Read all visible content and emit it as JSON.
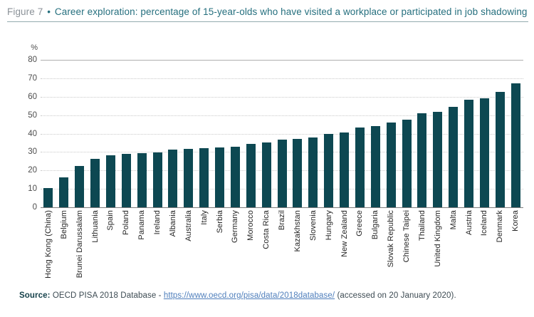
{
  "figure": {
    "label": "Figure 7",
    "separator": "•",
    "title": "Career exploration: percentage of 15-year-olds who have visited a workplace or participated in job shadowing"
  },
  "chart_data": {
    "type": "bar",
    "title": "Career exploration: percentage of 15-year-olds who have visited a workplace or participated in job shadowing",
    "unit_label": "%",
    "ylabel": "%",
    "ylim": [
      0,
      80
    ],
    "yticks": [
      0,
      10,
      20,
      30,
      40,
      50,
      60,
      70,
      80
    ],
    "grid": "horizontal-dotted, top line solid",
    "legend": "none",
    "bar_color": "#0d4852",
    "categories": [
      "Hong Kong (China)",
      "Belgium",
      "Brunei Darussalam",
      "Lithuania",
      "Spain",
      "Poland",
      "Panama",
      "Ireland",
      "Albania",
      "Australia",
      "Italy",
      "Serbia",
      "Germany",
      "Morocco",
      "Costa Rica",
      "Brazil",
      "Kazakhstan",
      "Slovenia",
      "Hungary",
      "New Zealand",
      "Greece",
      "Bulgaria",
      "Slovak Republic",
      "Chinese Taipei",
      "Thailand",
      "United Kingdom",
      "Malta",
      "Austria",
      "Iceland",
      "Denmark",
      "Korea"
    ],
    "values": [
      10.4,
      16.3,
      22.4,
      26.4,
      28.3,
      29.1,
      29.4,
      29.6,
      31.3,
      31.7,
      32.1,
      32.5,
      33.0,
      34.4,
      35.0,
      36.6,
      37.0,
      37.8,
      40.0,
      40.6,
      43.4,
      44.2,
      46.0,
      47.5,
      51.0,
      51.8,
      54.5,
      58.3,
      59.2,
      62.6,
      67.2
    ]
  },
  "source": {
    "label": "Source:",
    "text": " OECD PISA 2018 Database - ",
    "link": "https://www.oecd.org/pisa/data/2018database/",
    "suffix": " (accessed on 20 January 2020)."
  },
  "colors": {
    "bar": "#0d4852",
    "title_teal": "#256f7e",
    "figure_label_gray": "#8b9298",
    "rule": "#93abae",
    "link_blue": "#4f7fbc"
  }
}
